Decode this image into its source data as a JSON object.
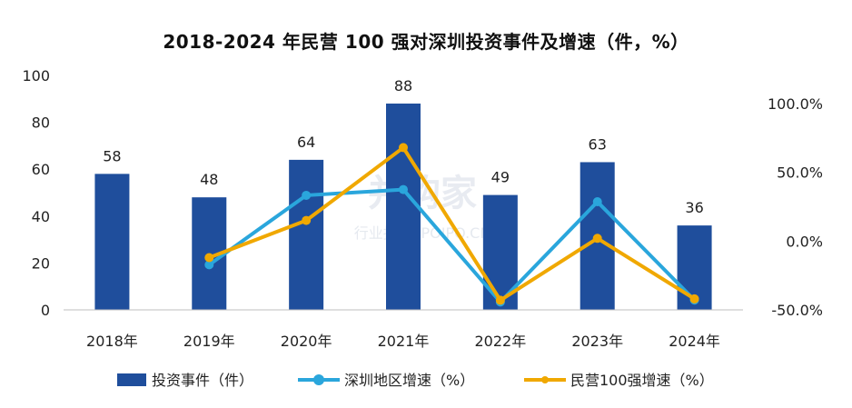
{
  "chart_data": {
    "type": "bar",
    "title": "2018-2024 年民营 100 强对深圳投资事件及增速（件，%）",
    "categories": [
      "2018年",
      "2019年",
      "2020年",
      "2021年",
      "2022年",
      "2023年",
      "2024年"
    ],
    "series": [
      {
        "name": "投资事件（件）",
        "type": "bar",
        "axis": "left",
        "values": [
          58,
          48,
          64,
          88,
          49,
          63,
          36
        ],
        "color": "#1f4e9c"
      },
      {
        "name": "深圳地区增速（%）",
        "type": "line",
        "axis": "right",
        "values": [
          null,
          -17.2,
          33.3,
          37.5,
          -44.3,
          28.6,
          -42.9
        ],
        "color": "#2aa6dc"
      },
      {
        "name": "民营100强增速（%）",
        "type": "line",
        "axis": "right",
        "values": [
          null,
          -12.0,
          15.0,
          68.0,
          -43.0,
          2.0,
          -42.0
        ],
        "color": "#f0a800"
      }
    ],
    "y_left": {
      "range": [
        0,
        100
      ],
      "ticks": [
        0,
        20,
        40,
        60,
        80,
        100
      ],
      "tick_labels": [
        "0",
        "20",
        "40",
        "60",
        "80",
        "100"
      ]
    },
    "y_right": {
      "range": [
        -50,
        100
      ],
      "ticks": [
        -50,
        0,
        50,
        100
      ],
      "tick_labels": [
        "-50.0%",
        "0.0%",
        "50.0%",
        "100.0%"
      ]
    },
    "grid": false,
    "legend": "bottom"
  },
  "watermark": {
    "main": "并购家",
    "sub": "行业报告 IPOIPO.CN"
  }
}
